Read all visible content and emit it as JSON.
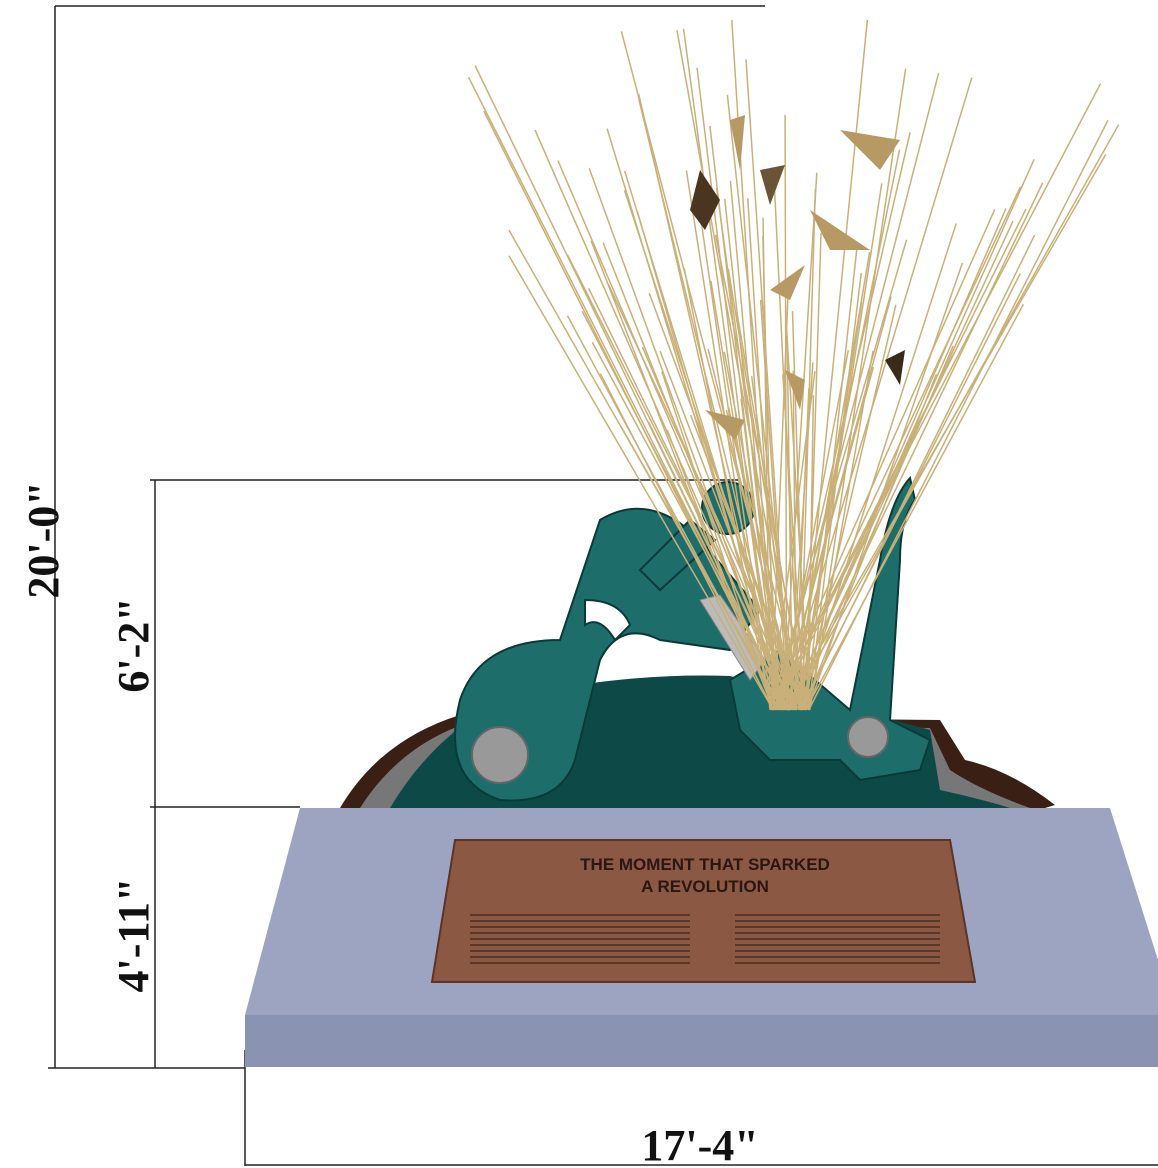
{
  "dimensions": {
    "overall_height": "20'-0\"",
    "sculpture_height": "6'-2\"",
    "base_height": "4'-11\"",
    "base_width": "17'-4\""
  },
  "plaque": {
    "title": [
      "THE MOMENT THAT SPARKED",
      "A REVOLUTION"
    ]
  }
}
